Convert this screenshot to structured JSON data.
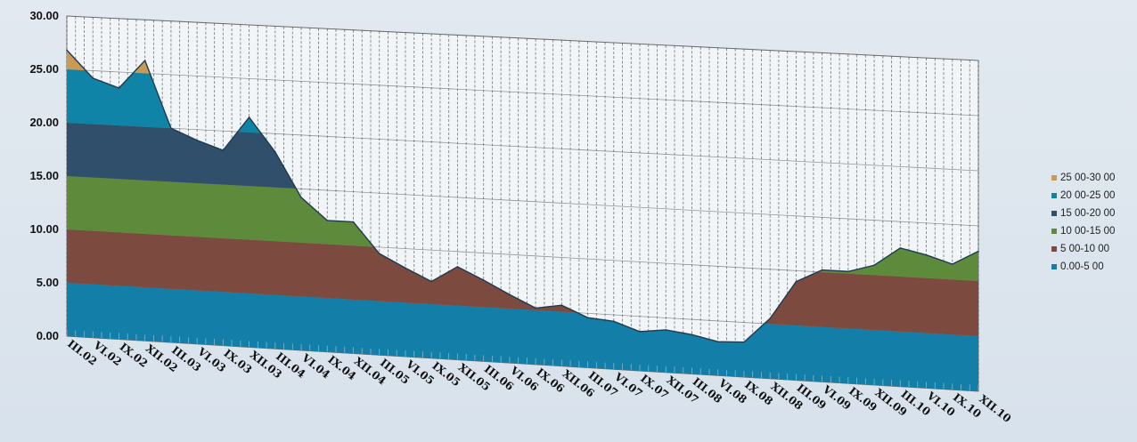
{
  "chart_data": {
    "type": "area",
    "title": "",
    "xlabel": "",
    "ylabel": "",
    "ylim": [
      0,
      30
    ],
    "y_ticks": [
      "0.00",
      "5.00",
      "10.00",
      "15.00",
      "20.00",
      "25.00",
      "30.00"
    ],
    "categories": [
      "III.02",
      "VI.02",
      "IX.02",
      "XII.02",
      "III.03",
      "VI.03",
      "IX.03",
      "XII.03",
      "III.04",
      "VI.04",
      "IX.04",
      "XII.04",
      "III.05",
      "VI.05",
      "IX.05",
      "XII.05",
      "III.06",
      "VI.06",
      "IX.06",
      "XII.06",
      "III.07",
      "VI.07",
      "IX.07",
      "XII.07",
      "III.08",
      "VI.08",
      "IX.08",
      "XII.08",
      "III.09",
      "VI.09",
      "IX.09",
      "XII.09",
      "III.10",
      "VI.10",
      "IX.10",
      "XII.10"
    ],
    "total": [
      26.8,
      24.3,
      23.5,
      26.2,
      20.0,
      19.0,
      18.2,
      21.4,
      18.3,
      14.2,
      12.2,
      12.2,
      9.4,
      8.2,
      7.1,
      8.6,
      7.5,
      6.3,
      5.2,
      5.6,
      4.6,
      4.4,
      3.6,
      3.9,
      3.6,
      3.1,
      3.2,
      5.5,
      9.0,
      10.2,
      10.2,
      10.9,
      12.6,
      12.1,
      11.4,
      12.7
    ],
    "bands": [
      {
        "name": "0.00-5.00",
        "label": "0.00-5 00",
        "min": 0,
        "max": 5,
        "color": "#137fa8"
      },
      {
        "name": "5.00-10.00",
        "label": "5 00-10 00",
        "min": 5,
        "max": 10,
        "color": "#7c4a3e"
      },
      {
        "name": "10.00-15.00",
        "label": "10 00-15 00",
        "min": 10,
        "max": 15,
        "color": "#5e8a3b"
      },
      {
        "name": "15.00-20.00",
        "label": "15 00-20 00",
        "min": 15,
        "max": 20,
        "color": "#2f4f6b"
      },
      {
        "name": "20.00-25.00",
        "label": "20 00-25 00",
        "min": 20,
        "max": 25,
        "color": "#0f84a6"
      },
      {
        "name": "25.00-30.00",
        "label": "25 00-30 00",
        "min": 25,
        "max": 30,
        "color": "#c99a57"
      }
    ],
    "colors": {
      "plot_background": "#f2f5f8",
      "grid_vertical": "#222222",
      "grid_horizontal": "#555555",
      "outline": "#1e3b50"
    },
    "grid": true,
    "legend_position": "right"
  }
}
